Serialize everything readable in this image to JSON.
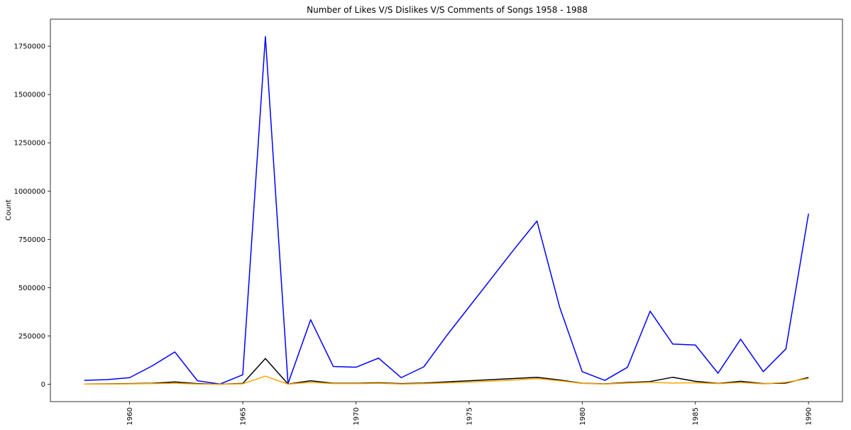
{
  "chart_data": {
    "type": "line",
    "title": "Number of Likes V/S Dislikes V/S Comments of Songs 1958 - 1988",
    "xlabel": "",
    "ylabel": "Count",
    "xlim": [
      1956.5,
      1991.5
    ],
    "ylim": [
      -90000,
      1890000
    ],
    "xticks": [
      1960,
      1965,
      1970,
      1975,
      1980,
      1985,
      1990
    ],
    "yticks": [
      0,
      250000,
      500000,
      750000,
      1000000,
      1250000,
      1500000,
      1750000
    ],
    "grid": false,
    "x": [
      1958,
      1959,
      1960,
      1961,
      1962,
      1963,
      1964,
      1965,
      1966,
      1967,
      1968,
      1969,
      1970,
      1971,
      1972,
      1973,
      1974,
      1975,
      1976,
      1977,
      1978,
      1979,
      1980,
      1981,
      1982,
      1983,
      1984,
      1985,
      1986,
      1987,
      1988,
      1989,
      1990
    ],
    "series": [
      {
        "name": "Likes",
        "color": "#0000ff",
        "values": [
          20000,
          24000,
          34000,
          95000,
          167000,
          18000,
          1000,
          49000,
          1800000,
          3000,
          334000,
          92000,
          88000,
          135000,
          34000,
          90000,
          250000,
          400000,
          550000,
          700000,
          845000,
          400000,
          65000,
          20000,
          88000,
          378000,
          208000,
          203000,
          57000,
          233000,
          65000,
          183000,
          883000
        ]
      },
      {
        "name": "Dislikes",
        "color": "#000000",
        "values": [
          1000,
          2000,
          3000,
          5000,
          12000,
          3000,
          0,
          4000,
          133000,
          1000,
          18000,
          5000,
          5000,
          8000,
          3000,
          6000,
          12000,
          18000,
          24000,
          30000,
          36000,
          22000,
          5000,
          2000,
          9000,
          14000,
          36000,
          15000,
          4000,
          15000,
          3000,
          6000,
          35000
        ]
      },
      {
        "name": "Comments",
        "color": "#ffa500",
        "values": [
          1000,
          1000,
          2000,
          3000,
          5000,
          1000,
          0,
          2000,
          42000,
          500,
          10000,
          3000,
          3000,
          5000,
          1000,
          3000,
          7000,
          11000,
          16000,
          22000,
          29000,
          18000,
          4000,
          1000,
          6000,
          10000,
          6000,
          8000,
          3000,
          9000,
          2000,
          10000,
          30000
        ]
      }
    ]
  }
}
